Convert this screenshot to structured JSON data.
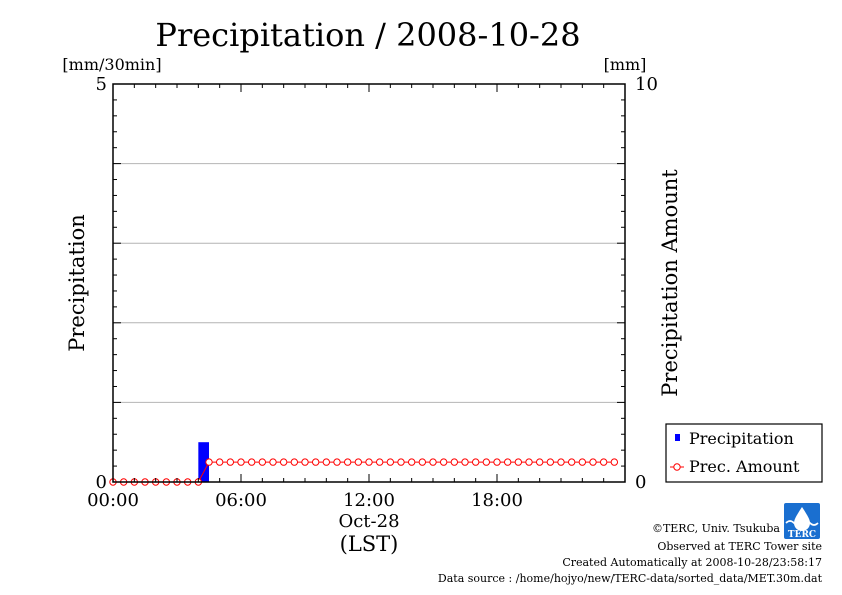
{
  "chart_data": {
    "type": "bar+line",
    "title": "Precipitation / 2008-10-28",
    "ylabel_left": "Precipitation",
    "ylabel_right": "Precipitation Amount",
    "unit_left": "[mm/30min]",
    "unit_right": "[mm]",
    "xlabel": "(LST)",
    "x_date_label": "Oct-28",
    "x_ticks": [
      "00:00",
      "06:00",
      "12:00",
      "18:00"
    ],
    "x_tick_hours": [
      0,
      6,
      12,
      18
    ],
    "xlim_hours": [
      0,
      24
    ],
    "ylim_left": [
      0,
      5
    ],
    "ylim_right": [
      0,
      10
    ],
    "y_ticks_left": [
      "0",
      "5"
    ],
    "y_ticks_left_values": [
      0,
      5
    ],
    "y_ticks_right": [
      "0",
      "10"
    ],
    "y_ticks_right_values": [
      0,
      10
    ],
    "grid": true,
    "legend_position": "bottom-right outside",
    "series": [
      {
        "name": "Precipitation",
        "kind": "bar",
        "axis": "left",
        "color": "#0000ff",
        "x_hours": [
          4.0
        ],
        "values": [
          0.5
        ],
        "bar_width_hours": 0.5
      },
      {
        "name": "Prec. Amount",
        "kind": "line",
        "axis": "right",
        "color": "#ff0000",
        "marker": "open-circle",
        "start_hour": 0.0,
        "step_hours": 0.5,
        "values": [
          0,
          0,
          0,
          0,
          0,
          0,
          0,
          0,
          0,
          0.5,
          0.5,
          0.5,
          0.5,
          0.5,
          0.5,
          0.5,
          0.5,
          0.5,
          0.5,
          0.5,
          0.5,
          0.5,
          0.5,
          0.5,
          0.5,
          0.5,
          0.5,
          0.5,
          0.5,
          0.5,
          0.5,
          0.5,
          0.5,
          0.5,
          0.5,
          0.5,
          0.5,
          0.5,
          0.5,
          0.5,
          0.5,
          0.5,
          0.5,
          0.5,
          0.5,
          0.5,
          0.5,
          0.5
        ]
      }
    ]
  },
  "footer": {
    "copyright": "©TERC, Univ. Tsukuba",
    "observed": "Observed at TERC Tower site",
    "created": "Created Automatically at 2008-10-28/23:58:17",
    "source": "Data source : /home/hojyo/new/TERC-data/sorted_data/MET.30m.dat"
  },
  "logo": {
    "text": "TERC",
    "color": "#1a6fd0"
  }
}
